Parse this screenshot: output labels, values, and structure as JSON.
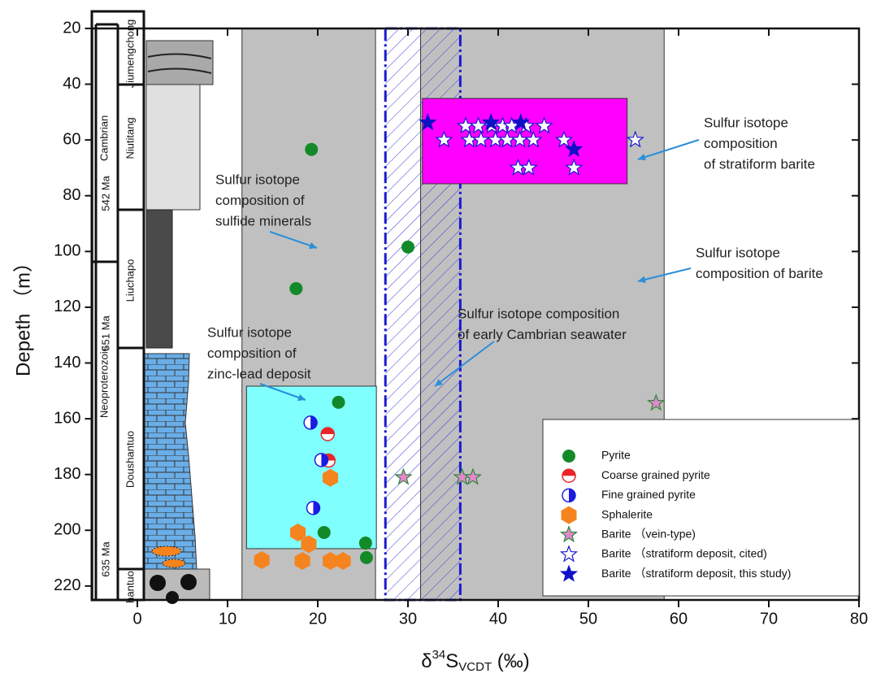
{
  "chart_data": {
    "type": "scatter",
    "x_label": {
      "prefix": "δ",
      "sup": "34",
      "main": "S",
      "sub": "VCDT",
      "suffix": " (‰)"
    },
    "y_label": "Depeth （m）",
    "xlim": [
      -5,
      80
    ],
    "xticks": [
      0,
      10,
      20,
      30,
      40,
      50,
      60,
      70,
      80
    ],
    "ylim": [
      20,
      225
    ],
    "yticks": [
      20,
      40,
      60,
      80,
      100,
      120,
      140,
      160,
      180,
      200,
      220
    ],
    "y_reversed": true,
    "legend": "lower right",
    "regions": [
      {
        "xlim": [
          11.6,
          26.4
        ],
        "ylim": [
          20,
          225
        ],
        "color": "#c0c0c0",
        "style": "solid"
      },
      {
        "xlim": [
          31.4,
          58.4
        ],
        "ylim": [
          20,
          225
        ],
        "color": "#c0c0c0",
        "style": "solid"
      },
      {
        "xlim": [
          27.5,
          35.8
        ],
        "ylim": [
          20,
          225
        ],
        "color": "#1a1ad0",
        "style": "hatch"
      },
      {
        "xlim": [
          12.1,
          26.5
        ],
        "ylim": [
          148.3,
          206.6
        ],
        "color": "#80ffff",
        "style": "solid"
      },
      {
        "xlim": [
          31.6,
          54.3
        ],
        "ylim": [
          45.1,
          75.7
        ],
        "color": "#ff00ff",
        "style": "solid"
      }
    ],
    "series": [
      {
        "name": "Pyrite",
        "marker": "circle",
        "color": "#138a2a",
        "x": [
          19.3,
          30.0,
          17.6,
          22.3,
          20.7,
          25.3,
          25.4
        ],
        "y": [
          63.4,
          98.4,
          113.3,
          154.1,
          200.8,
          204.6,
          209.8
        ]
      },
      {
        "name": "Coarse grained pyrite",
        "marker": "half-top",
        "color": "#e8262a",
        "x": [
          21.1,
          21.2
        ],
        "y": [
          165.5,
          175.0
        ]
      },
      {
        "name": "Fine grained pyrite",
        "marker": "half-left",
        "color": "#1c1ce0",
        "x": [
          19.2,
          20.4,
          19.5
        ],
        "y": [
          161.4,
          174.8,
          192.0
        ]
      },
      {
        "name": "Sphalerite",
        "marker": "hexagon",
        "color": "#f5841f",
        "x": [
          21.4,
          17.8,
          19.0,
          13.8,
          18.3,
          21.4,
          22.8
        ],
        "y": [
          181.2,
          200.8,
          205.0,
          210.7,
          211.0,
          211.0,
          211.0
        ]
      },
      {
        "name": "Barite （vein-type)",
        "marker": "star",
        "color": "#e586cf",
        "edge": "#2a8a3a",
        "x": [
          29.5,
          36.0,
          37.2,
          57.5
        ],
        "y": [
          181.0,
          181.0,
          181.0,
          154.4
        ]
      },
      {
        "name": "Barite （stratiform deposit, cited)",
        "marker": "star",
        "color": "#ffffff",
        "edge": "#1a1ad0",
        "x": [
          36.4,
          37.8,
          39.3,
          40.5,
          41.5,
          43.1,
          45.1,
          34.0,
          36.8,
          38.1,
          39.7,
          41.0,
          42.4,
          43.9,
          47.3,
          55.2,
          42.2,
          43.4,
          48.4
        ],
        "y": [
          55,
          55,
          55,
          55,
          55,
          55,
          55,
          60,
          60,
          60,
          60,
          60,
          60,
          60,
          60,
          60,
          70,
          70,
          70
        ]
      },
      {
        "name": "Barite （stratiform deposit, this study)",
        "marker": "star",
        "color": "#1010c8",
        "edge": "#1010c8",
        "x": [
          32.2,
          39.2,
          42.5,
          48.4
        ],
        "y": [
          53.8,
          53.8,
          53.8,
          63.4
        ]
      }
    ],
    "annotations": [
      {
        "lines": [
          "Sulfur isotope",
          "composition of",
          "sulfide minerals"
        ]
      },
      {
        "lines": [
          "Sulfur isotope",
          "composition of",
          "zinc-lead deposit"
        ]
      },
      {
        "lines": [
          "Sulfur isotope composition",
          "of early Cambrian seawater"
        ]
      },
      {
        "lines": [
          "Sulfur isotope",
          "composition",
          "of stratiform barite"
        ]
      },
      {
        "lines": [
          "Sulfur isotope",
          "composition of barite"
        ]
      }
    ],
    "stratigraphy": {
      "systems": [
        "Cambrian",
        "Neoproterozoic"
      ],
      "formations": [
        "Jiumengchong",
        "Niutitang",
        "Liuchapo",
        "Doushantuo",
        "hantuo"
      ],
      "ages": [
        "542 Ma",
        "551 Ma",
        "635 Ma"
      ]
    }
  }
}
